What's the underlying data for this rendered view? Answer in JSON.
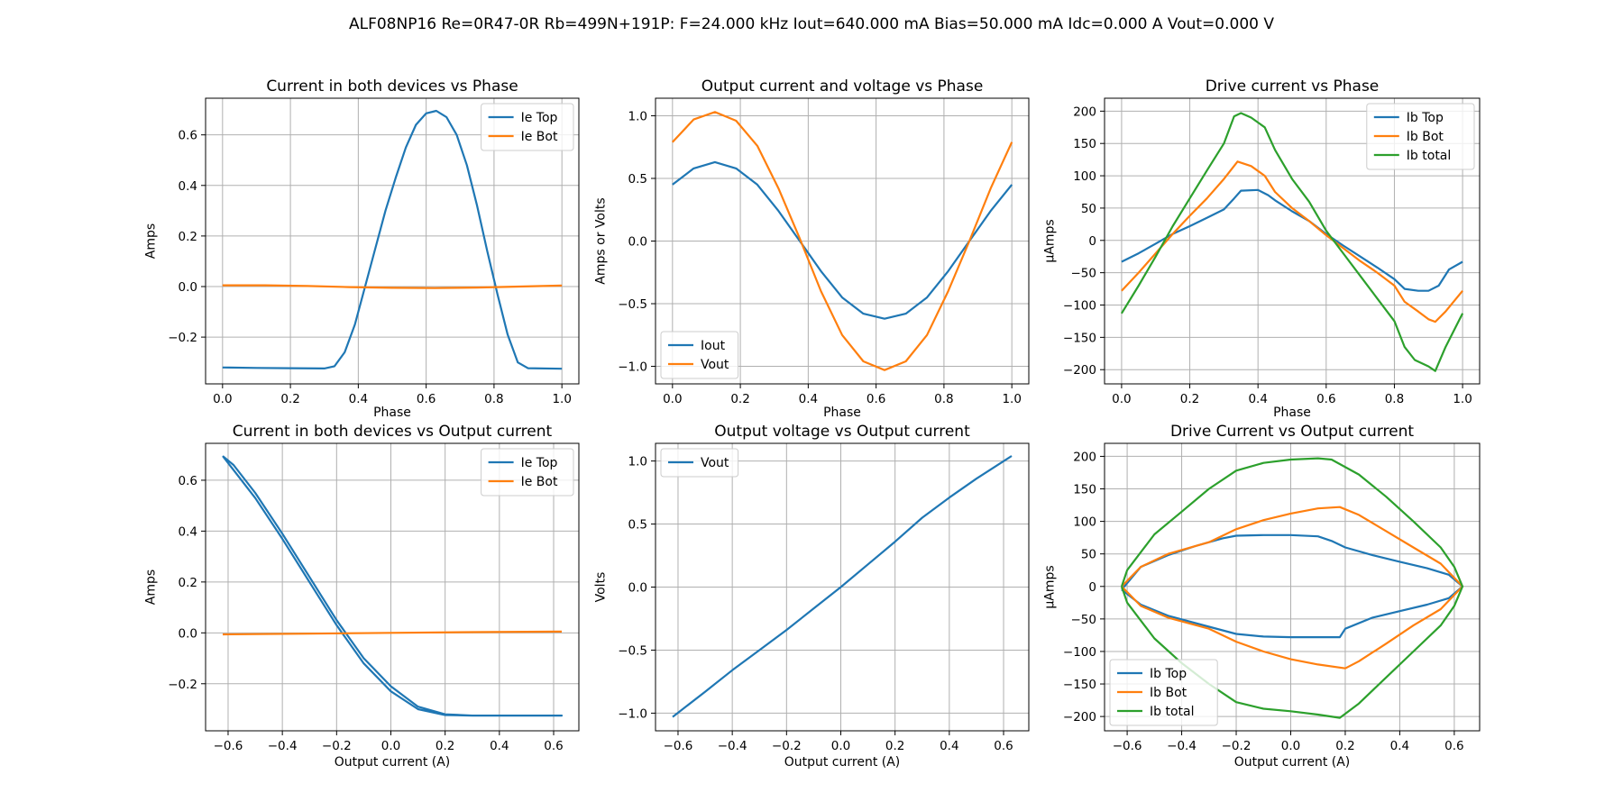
{
  "figure": {
    "suptitle": "ALF08NP16 Re=0R47-0R Rb=499N+191P: F=24.000 kHz Iout=640.000 mA Bias=50.000 mA Idc=0.000 A Vout=0.000 V"
  },
  "colors": {
    "c0": "#1f77b4",
    "c1": "#ff7f0e",
    "c2": "#2ca02c"
  },
  "chart_data": [
    {
      "id": "p1",
      "type": "line",
      "title": "Current in both devices vs Phase",
      "xlabel": "Phase",
      "ylabel": "Amps",
      "xlim": [
        -0.05,
        1.05
      ],
      "ylim": [
        -0.385,
        0.745
      ],
      "xticks": [
        0,
        0.2,
        0.4,
        0.6,
        0.8,
        1.0
      ],
      "xtick_labels": [
        "0.0",
        "0.2",
        "0.4",
        "0.6",
        "0.8",
        "1.0"
      ],
      "yticks": [
        -0.2,
        0,
        0.2,
        0.4,
        0.6
      ],
      "ytick_labels": [
        "−0.2",
        "0.0",
        "0.2",
        "0.4",
        "0.6"
      ],
      "grid": true,
      "legend": "upper right",
      "series": [
        {
          "name": "Ie Top",
          "color": "#1f77b4",
          "x": [
            0,
            0.1,
            0.2,
            0.3,
            0.33,
            0.36,
            0.39,
            0.42,
            0.45,
            0.48,
            0.51,
            0.54,
            0.57,
            0.6,
            0.63,
            0.66,
            0.69,
            0.72,
            0.75,
            0.78,
            0.81,
            0.84,
            0.87,
            0.9,
            1.0
          ],
          "y": [
            -0.32,
            -0.322,
            -0.323,
            -0.324,
            -0.315,
            -0.26,
            -0.15,
            0.0,
            0.15,
            0.3,
            0.43,
            0.55,
            0.64,
            0.685,
            0.695,
            0.67,
            0.6,
            0.48,
            0.32,
            0.14,
            -0.03,
            -0.19,
            -0.3,
            -0.323,
            -0.325
          ]
        },
        {
          "name": "Ie Bot",
          "color": "#ff7f0e",
          "x": [
            0,
            0.125,
            0.25,
            0.375,
            0.5,
            0.625,
            0.75,
            0.875,
            1.0
          ],
          "y": [
            0.005,
            0.005,
            0.002,
            -0.002,
            -0.005,
            -0.006,
            -0.004,
            0.0,
            0.004
          ]
        }
      ]
    },
    {
      "id": "p2",
      "type": "line",
      "title": "Output current and voltage vs Phase",
      "xlabel": "Phase",
      "ylabel": "Amps or Volts",
      "xlim": [
        -0.05,
        1.05
      ],
      "ylim": [
        -1.14,
        1.14
      ],
      "xticks": [
        0,
        0.2,
        0.4,
        0.6,
        0.8,
        1.0
      ],
      "xtick_labels": [
        "0.0",
        "0.2",
        "0.4",
        "0.6",
        "0.8",
        "1.0"
      ],
      "yticks": [
        -1.0,
        -0.5,
        0,
        0.5,
        1.0
      ],
      "ytick_labels": [
        "−1.0",
        "−0.5",
        "0.0",
        "0.5",
        "1.0"
      ],
      "grid": true,
      "legend": "lower left",
      "series": [
        {
          "name": "Iout",
          "color": "#1f77b4",
          "x": [
            0,
            0.0625,
            0.125,
            0.1875,
            0.25,
            0.3125,
            0.375,
            0.4375,
            0.5,
            0.5625,
            0.625,
            0.6875,
            0.75,
            0.8125,
            0.875,
            0.9375,
            1.0
          ],
          "y": [
            0.45,
            0.58,
            0.63,
            0.58,
            0.45,
            0.24,
            0.0,
            -0.24,
            -0.45,
            -0.58,
            -0.62,
            -0.58,
            -0.45,
            -0.24,
            0.0,
            0.24,
            0.45
          ]
        },
        {
          "name": "Vout",
          "color": "#ff7f0e",
          "x": [
            0,
            0.0625,
            0.125,
            0.1875,
            0.25,
            0.3125,
            0.375,
            0.4375,
            0.5,
            0.5625,
            0.625,
            0.6875,
            0.75,
            0.8125,
            0.875,
            0.9375,
            1.0
          ],
          "y": [
            0.79,
            0.97,
            1.03,
            0.96,
            0.76,
            0.42,
            0.02,
            -0.4,
            -0.75,
            -0.96,
            -1.03,
            -0.96,
            -0.75,
            -0.4,
            0.0,
            0.42,
            0.79
          ]
        }
      ]
    },
    {
      "id": "p3",
      "type": "line",
      "title": "Drive current vs Phase",
      "xlabel": "Phase",
      "ylabel": "µAmps",
      "xlim": [
        -0.05,
        1.05
      ],
      "ylim": [
        -222,
        220
      ],
      "xticks": [
        0,
        0.2,
        0.4,
        0.6,
        0.8,
        1.0
      ],
      "xtick_labels": [
        "0.0",
        "0.2",
        "0.4",
        "0.6",
        "0.8",
        "1.0"
      ],
      "yticks": [
        -200,
        -150,
        -100,
        -50,
        0,
        50,
        100,
        150,
        200
      ],
      "ytick_labels": [
        "−200",
        "−150",
        "−100",
        "−50",
        "0",
        "50",
        "100",
        "150",
        "200"
      ],
      "grid": true,
      "legend": "upper right",
      "series": [
        {
          "name": "Ib Top",
          "color": "#1f77b4",
          "x": [
            0,
            0.05,
            0.1,
            0.15,
            0.2,
            0.25,
            0.3,
            0.33,
            0.35,
            0.4,
            0.43,
            0.45,
            0.5,
            0.55,
            0.6,
            0.65,
            0.7,
            0.75,
            0.8,
            0.83,
            0.87,
            0.9,
            0.93,
            0.96,
            1.0
          ],
          "y": [
            -33,
            -20,
            -5,
            10,
            22,
            35,
            48,
            65,
            77,
            78,
            70,
            62,
            45,
            30,
            10,
            -8,
            -25,
            -42,
            -60,
            -75,
            -78,
            -78,
            -70,
            -45,
            -33
          ]
        },
        {
          "name": "Ib Bot",
          "color": "#ff7f0e",
          "x": [
            0,
            0.05,
            0.1,
            0.15,
            0.2,
            0.25,
            0.3,
            0.34,
            0.38,
            0.42,
            0.45,
            0.5,
            0.55,
            0.6,
            0.65,
            0.7,
            0.75,
            0.8,
            0.83,
            0.87,
            0.9,
            0.92,
            0.95,
            1.0
          ],
          "y": [
            -78,
            -50,
            -20,
            10,
            38,
            65,
            95,
            122,
            115,
            100,
            75,
            50,
            30,
            8,
            -12,
            -32,
            -50,
            -70,
            -95,
            -110,
            -122,
            -126,
            -110,
            -78
          ]
        },
        {
          "name": "Ib total",
          "color": "#2ca02c",
          "x": [
            0,
            0.05,
            0.1,
            0.15,
            0.2,
            0.25,
            0.3,
            0.33,
            0.35,
            0.38,
            0.42,
            0.45,
            0.5,
            0.55,
            0.6,
            0.65,
            0.7,
            0.75,
            0.8,
            0.83,
            0.86,
            0.9,
            0.92,
            0.95,
            1.0
          ],
          "y": [
            -113,
            -70,
            -25,
            22,
            65,
            108,
            150,
            192,
            197,
            190,
            175,
            140,
            95,
            60,
            15,
            -20,
            -55,
            -90,
            -125,
            -165,
            -185,
            -195,
            -202,
            -165,
            -113
          ]
        }
      ]
    },
    {
      "id": "p4",
      "type": "line",
      "title": "Current in both devices vs Output current",
      "xlabel": "Output current (A)",
      "ylabel": "Amps",
      "xlim": [
        -0.683,
        0.693
      ],
      "ylim": [
        -0.385,
        0.745
      ],
      "xticks": [
        -0.6,
        -0.4,
        -0.2,
        0,
        0.2,
        0.4,
        0.6
      ],
      "xtick_labels": [
        "−0.6",
        "−0.4",
        "−0.2",
        "0.0",
        "0.2",
        "0.4",
        "0.6"
      ],
      "yticks": [
        -0.2,
        0,
        0.2,
        0.4,
        0.6
      ],
      "ytick_labels": [
        "−0.2",
        "0.0",
        "0.2",
        "0.4",
        "0.6"
      ],
      "grid": true,
      "legend": "upper right",
      "series": [
        {
          "name": "Ie Top",
          "color": "#1f77b4",
          "x": [
            -0.62,
            -0.58,
            -0.5,
            -0.4,
            -0.3,
            -0.2,
            -0.1,
            0.0,
            0.1,
            0.2,
            0.3,
            0.4,
            0.5,
            0.63,
            0.5,
            0.4,
            0.3,
            0.2,
            0.1,
            0.0,
            -0.1,
            -0.2,
            -0.3,
            -0.4,
            -0.5,
            -0.58,
            -0.62
          ],
          "y": [
            0.695,
            0.64,
            0.53,
            0.37,
            0.2,
            0.03,
            -0.12,
            -0.23,
            -0.3,
            -0.323,
            -0.325,
            -0.325,
            -0.325,
            -0.325,
            -0.325,
            -0.325,
            -0.325,
            -0.32,
            -0.29,
            -0.21,
            -0.1,
            0.05,
            0.22,
            0.39,
            0.55,
            0.66,
            0.695
          ]
        },
        {
          "name": "Ie Bot",
          "color": "#ff7f0e",
          "x": [
            -0.62,
            -0.3,
            0.0,
            0.3,
            0.63
          ],
          "y": [
            -0.006,
            -0.003,
            0.0,
            0.003,
            0.005
          ]
        }
      ]
    },
    {
      "id": "p5",
      "type": "line",
      "title": "Output voltage vs Output current",
      "xlabel": "Output current (A)",
      "ylabel": "Volts",
      "xlim": [
        -0.683,
        0.693
      ],
      "ylim": [
        -1.14,
        1.14
      ],
      "xticks": [
        -0.6,
        -0.4,
        -0.2,
        0,
        0.2,
        0.4,
        0.6
      ],
      "xtick_labels": [
        "−0.6",
        "−0.4",
        "−0.2",
        "0.0",
        "0.2",
        "0.4",
        "0.6"
      ],
      "yticks": [
        -1.0,
        -0.5,
        0,
        0.5,
        1.0
      ],
      "ytick_labels": [
        "−1.0",
        "−0.5",
        "0.0",
        "0.5",
        "1.0"
      ],
      "grid": true,
      "legend": "upper left",
      "series": [
        {
          "name": "Vout",
          "color": "#1f77b4",
          "x": [
            -0.62,
            -0.5,
            -0.4,
            -0.3,
            -0.2,
            -0.1,
            0.0,
            0.1,
            0.2,
            0.3,
            0.4,
            0.5,
            0.63
          ],
          "y": [
            -1.03,
            -0.83,
            -0.66,
            -0.5,
            -0.34,
            -0.17,
            0.0,
            0.18,
            0.36,
            0.55,
            0.71,
            0.86,
            1.04
          ]
        }
      ]
    },
    {
      "id": "p6",
      "type": "line",
      "title": "Drive Current vs Output current",
      "xlabel": "Output current (A)",
      "ylabel": "µAmps",
      "xlim": [
        -0.683,
        0.693
      ],
      "ylim": [
        -222,
        220
      ],
      "xticks": [
        -0.6,
        -0.4,
        -0.2,
        0,
        0.2,
        0.4,
        0.6
      ],
      "xtick_labels": [
        "−0.6",
        "−0.4",
        "−0.2",
        "0.0",
        "0.2",
        "0.4",
        "0.6"
      ],
      "yticks": [
        -200,
        -150,
        -100,
        -50,
        0,
        50,
        100,
        150,
        200
      ],
      "ytick_labels": [
        "−200",
        "−150",
        "−100",
        "−50",
        "0",
        "50",
        "100",
        "150",
        "200"
      ],
      "grid": true,
      "legend": "lower left",
      "series": [
        {
          "name": "Ib Top",
          "color": "#1f77b4",
          "x": [
            -0.62,
            -0.55,
            -0.45,
            -0.35,
            -0.25,
            -0.2,
            -0.1,
            0.0,
            0.1,
            0.15,
            0.2,
            0.3,
            0.4,
            0.5,
            0.58,
            0.63,
            0.58,
            0.5,
            0.4,
            0.3,
            0.2,
            0.18,
            0.1,
            0.0,
            -0.1,
            -0.2,
            -0.3,
            -0.45,
            -0.55,
            -0.62
          ],
          "y": [
            -5,
            30,
            48,
            62,
            74,
            78,
            79,
            79,
            77,
            70,
            60,
            48,
            38,
            28,
            18,
            0,
            -18,
            -28,
            -38,
            -48,
            -65,
            -78,
            -78,
            -78,
            -77,
            -73,
            -62,
            -45,
            -28,
            -5
          ]
        },
        {
          "name": "Ib Bot",
          "color": "#ff7f0e",
          "x": [
            -0.62,
            -0.55,
            -0.45,
            -0.3,
            -0.2,
            -0.1,
            0.0,
            0.1,
            0.18,
            0.25,
            0.35,
            0.45,
            0.55,
            0.63,
            0.55,
            0.45,
            0.35,
            0.25,
            0.2,
            0.1,
            0.0,
            -0.1,
            -0.2,
            -0.3,
            -0.45,
            -0.55,
            -0.62
          ],
          "y": [
            0,
            30,
            50,
            68,
            88,
            102,
            112,
            120,
            122,
            110,
            85,
            60,
            35,
            0,
            -35,
            -60,
            -88,
            -115,
            -126,
            -120,
            -112,
            -100,
            -85,
            -65,
            -48,
            -30,
            0
          ]
        },
        {
          "name": "Ib total",
          "color": "#2ca02c",
          "x": [
            -0.62,
            -0.6,
            -0.5,
            -0.4,
            -0.3,
            -0.2,
            -0.1,
            0.0,
            0.1,
            0.15,
            0.25,
            0.35,
            0.45,
            0.55,
            0.6,
            0.63,
            0.6,
            0.55,
            0.45,
            0.35,
            0.25,
            0.18,
            0.1,
            0.0,
            -0.1,
            -0.2,
            -0.3,
            -0.4,
            -0.5,
            -0.6,
            -0.62
          ],
          "y": [
            0,
            25,
            80,
            115,
            150,
            178,
            190,
            195,
            197,
            195,
            172,
            138,
            100,
            60,
            30,
            0,
            -30,
            -60,
            -100,
            -140,
            -180,
            -202,
            -197,
            -192,
            -188,
            -178,
            -150,
            -118,
            -80,
            -25,
            0
          ]
        }
      ]
    }
  ]
}
